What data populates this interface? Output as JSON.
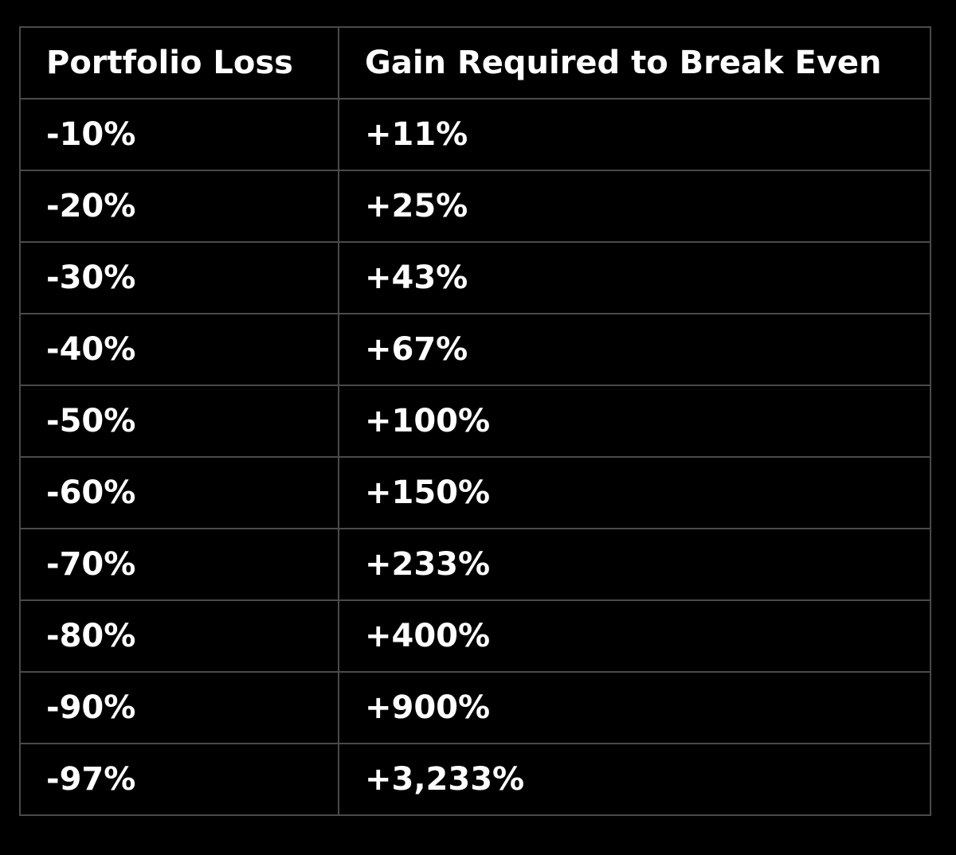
{
  "table": {
    "header": [
      "Portfolio Loss",
      "Gain Required to Break Even"
    ],
    "rows": [
      [
        "-10%",
        "+11%"
      ],
      [
        "-20%",
        "+25%"
      ],
      [
        "-30%",
        "+43%"
      ],
      [
        "-40%",
        "+67%"
      ],
      [
        "-50%",
        "+100%"
      ],
      [
        "-60%",
        "+150%"
      ],
      [
        "-70%",
        "+233%"
      ],
      [
        "-80%",
        "+400%"
      ],
      [
        "-90%",
        "+900%"
      ],
      [
        "-97%",
        "+3,233%"
      ]
    ]
  }
}
